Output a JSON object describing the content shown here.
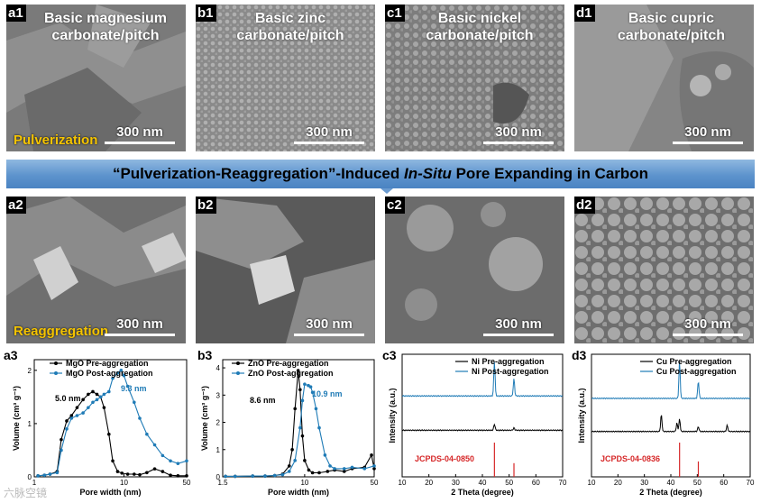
{
  "panels_top": [
    {
      "label": "a1",
      "title": "Basic magnesium carbonate/pitch",
      "scale": "300 nm",
      "note": "Pulverization"
    },
    {
      "label": "b1",
      "title": "Basic zinc carbonate/pitch",
      "scale": "300 nm"
    },
    {
      "label": "c1",
      "title": "Basic nickel carbonate/pitch",
      "scale": "300 nm"
    },
    {
      "label": "d1",
      "title": "Basic cupric carbonate/pitch",
      "scale": "300 nm"
    }
  ],
  "banner": {
    "part1": "“Pulverization-Reaggregation”-Induced ",
    "italic": "In-Situ",
    "part2": " Pore Expanding in Carbon"
  },
  "panels_mid": [
    {
      "label": "a2",
      "scale": "300 nm",
      "note": "Reaggregation"
    },
    {
      "label": "b2",
      "scale": "300 nm"
    },
    {
      "label": "c2",
      "scale": "300 nm"
    },
    {
      "label": "d2",
      "scale": "300 nm"
    }
  ],
  "watermark": "六脉空镜",
  "colors": {
    "black": "#000000",
    "blue": "#1f7bb6",
    "red": "#d62728",
    "banner": "#5d93cd",
    "note": "#f5c400"
  },
  "chart_data": [
    {
      "label": "a3",
      "type": "line",
      "xscale": "log",
      "xlim": [
        1,
        50
      ],
      "ylim": [
        0,
        2.2
      ],
      "xticks": [
        "1",
        "10",
        "50"
      ],
      "yticks": [
        "0",
        "1",
        "2"
      ],
      "xlabel": "Pore width (nm)",
      "ylabel": "Volume (cm³ g⁻¹)",
      "series": [
        {
          "name": "MgO Pre-aggregation",
          "color": "#000000",
          "x": [
            1.1,
            1.3,
            1.5,
            1.8,
            2.0,
            2.3,
            2.6,
            3.0,
            3.5,
            4.0,
            4.5,
            5.0,
            5.5,
            6.0,
            6.8,
            7.5,
            8.5,
            9.5,
            11,
            13,
            15,
            18,
            22,
            27,
            33,
            40,
            50
          ],
          "y": [
            0.02,
            0.03,
            0.05,
            0.1,
            0.7,
            1.05,
            1.15,
            1.3,
            1.45,
            1.55,
            1.6,
            1.55,
            1.5,
            1.3,
            0.8,
            0.3,
            0.1,
            0.07,
            0.05,
            0.05,
            0.04,
            0.08,
            0.15,
            0.1,
            0.03,
            0.02,
            0.02
          ]
        },
        {
          "name": "MgO Post-aggregation",
          "color": "#1f7bb6",
          "x": [
            1.1,
            1.3,
            1.5,
            1.8,
            2.0,
            2.3,
            2.6,
            3.0,
            3.5,
            4.0,
            4.5,
            5.0,
            5.5,
            6.0,
            6.8,
            7.5,
            8.5,
            9.3,
            10,
            11,
            13,
            15,
            18,
            22,
            27,
            33,
            40,
            50
          ],
          "y": [
            0.02,
            0.03,
            0.05,
            0.08,
            0.5,
            0.9,
            1.1,
            1.15,
            1.2,
            1.3,
            1.4,
            1.45,
            1.5,
            1.55,
            1.6,
            1.85,
            1.95,
            2.0,
            1.9,
            1.7,
            1.4,
            1.1,
            0.8,
            0.6,
            0.4,
            0.3,
            0.25,
            0.3
          ]
        }
      ],
      "annotations": [
        {
          "text": "5.0 nm",
          "color": "#000000"
        },
        {
          "text": "9.3 nm",
          "color": "#1f7bb6"
        }
      ]
    },
    {
      "label": "b3",
      "type": "line",
      "xscale": "log",
      "xlim": [
        1.5,
        50
      ],
      "ylim": [
        0,
        4.3
      ],
      "xticks": [
        "1.5",
        "10",
        "50"
      ],
      "yticks": [
        "0",
        "1",
        "2",
        "3",
        "4"
      ],
      "xlabel": "Pore width (nm)",
      "ylabel": "Volume (cm³ g⁻¹)",
      "series": [
        {
          "name": "ZnO Pre-aggregation",
          "color": "#000000",
          "x": [
            1.6,
            2,
            3,
            4,
            5,
            6,
            7,
            7.5,
            8,
            8.6,
            9,
            9.5,
            10,
            11,
            12,
            14,
            17,
            20,
            25,
            30,
            40,
            47,
            50
          ],
          "y": [
            0.02,
            0.02,
            0.03,
            0.03,
            0.05,
            0.1,
            0.4,
            1.0,
            2.5,
            3.9,
            3.2,
            1.5,
            0.6,
            0.25,
            0.15,
            0.15,
            0.2,
            0.25,
            0.2,
            0.3,
            0.35,
            0.8,
            0.3
          ]
        },
        {
          "name": "ZnO Post-aggregation",
          "color": "#1f7bb6",
          "x": [
            1.6,
            2,
            3,
            4,
            5,
            6,
            7,
            8,
            9,
            9.5,
            10,
            10.9,
            11.5,
            12,
            13,
            14,
            16,
            18,
            20,
            25,
            30,
            40,
            50
          ],
          "y": [
            0.02,
            0.02,
            0.03,
            0.03,
            0.05,
            0.08,
            0.2,
            0.6,
            1.8,
            2.8,
            3.4,
            3.35,
            3.3,
            3.1,
            2.5,
            1.8,
            0.8,
            0.4,
            0.3,
            0.3,
            0.35,
            0.3,
            0.4
          ]
        }
      ],
      "annotations": [
        {
          "text": "8.6 nm",
          "color": "#000000"
        },
        {
          "text": "10.9 nm",
          "color": "#1f7bb6"
        }
      ]
    },
    {
      "label": "c3",
      "type": "line",
      "xlim": [
        10,
        70
      ],
      "xticks": [
        "10",
        "20",
        "30",
        "40",
        "50",
        "60",
        "70"
      ],
      "xlabel": "2 Theta (degree)",
      "ylabel": "Intensity (a.u.)",
      "series": [
        {
          "name": "Ni Pre-aggregation",
          "color": "#000000",
          "baseline": 0.38,
          "peaks": [
            [
              44.5,
              0.05
            ],
            [
              51.8,
              0.02
            ]
          ]
        },
        {
          "name": "Ni Post-aggregation",
          "color": "#1f7bb6",
          "baseline": 0.66,
          "peaks": [
            [
              44.5,
              0.28
            ],
            [
              51.8,
              0.14
            ]
          ]
        }
      ],
      "reference": {
        "name": "JCPDS-04-0850",
        "color": "#d62728",
        "x": [
          44.5,
          51.8
        ],
        "h": [
          1.0,
          0.4
        ]
      }
    },
    {
      "label": "d3",
      "type": "line",
      "xlim": [
        10,
        70
      ],
      "xticks": [
        "10",
        "20",
        "30",
        "40",
        "50",
        "60",
        "70"
      ],
      "xlabel": "2 Theta (degree)",
      "ylabel": "Intensity (a.u.)",
      "series": [
        {
          "name": "Cu Pre-aggregation",
          "color": "#000000",
          "baseline": 0.37,
          "peaks": [
            [
              36.4,
              0.14
            ],
            [
              42.3,
              0.07
            ],
            [
              43.3,
              0.1
            ],
            [
              50.4,
              0.04
            ],
            [
              61.3,
              0.05
            ]
          ]
        },
        {
          "name": "Cu Post-aggregation",
          "color": "#1f7bb6",
          "baseline": 0.64,
          "peaks": [
            [
              43.3,
              0.3
            ],
            [
              50.4,
              0.14
            ]
          ]
        }
      ],
      "reference": {
        "name": "JCPDS-04-0836",
        "color": "#d62728",
        "x": [
          43.3,
          50.4
        ],
        "h": [
          1.0,
          0.45
        ]
      }
    }
  ]
}
